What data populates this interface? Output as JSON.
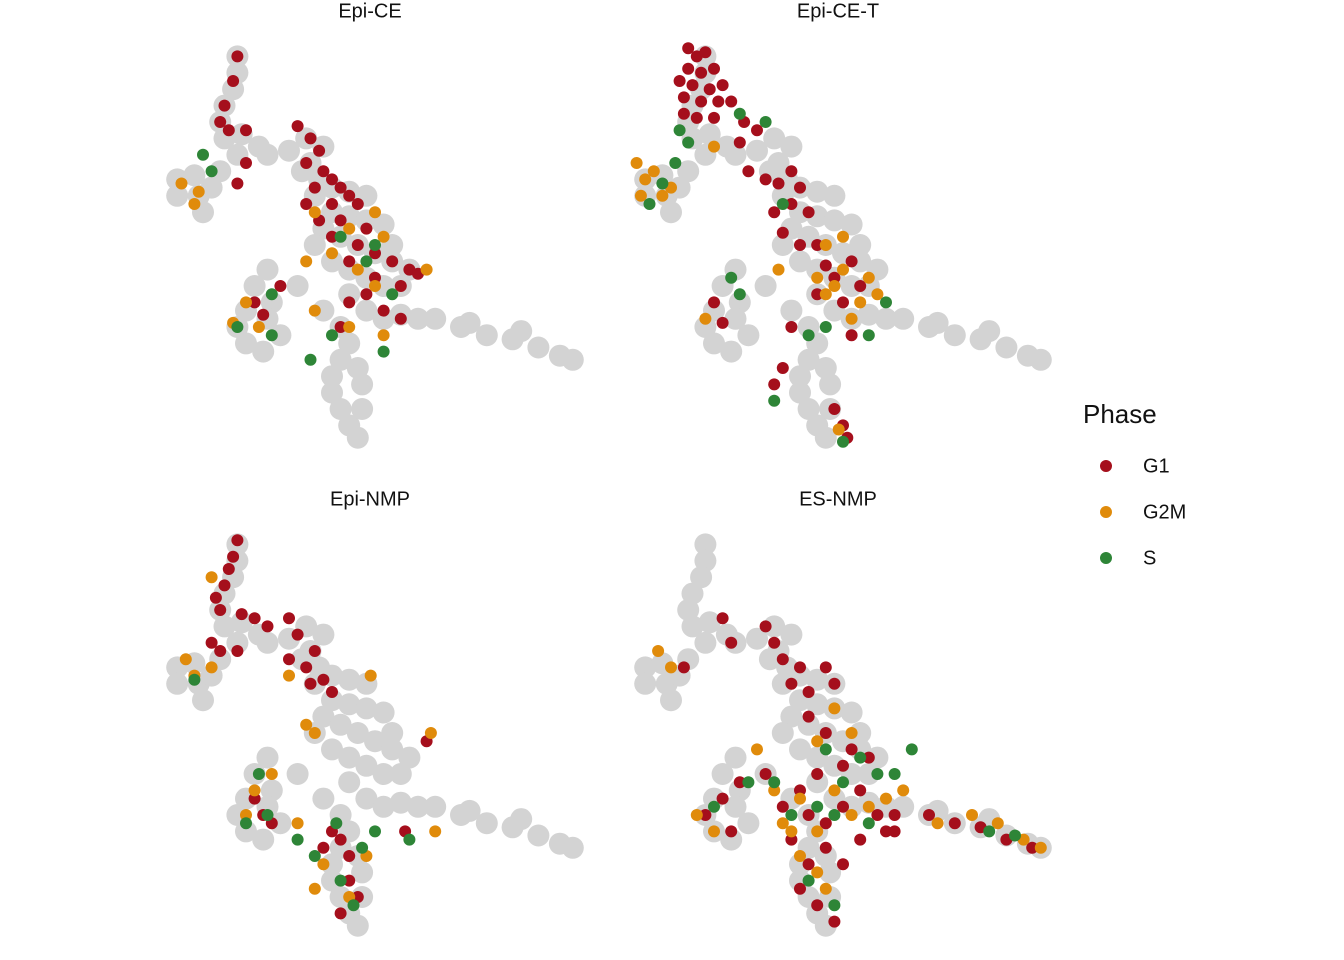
{
  "all_cells": {
    "color": "#d3d3d3",
    "x": [
      18,
      18,
      17,
      15,
      14,
      15,
      19,
      23,
      18,
      4,
      8,
      4,
      9,
      12,
      14,
      10,
      25,
      30,
      34,
      38,
      35,
      33,
      37,
      40,
      44,
      48,
      36,
      40,
      44,
      48,
      52,
      38,
      42,
      46,
      50,
      54,
      36,
      40,
      44,
      48,
      52,
      56,
      58,
      54,
      44,
      48,
      52,
      56,
      60,
      64,
      70,
      76,
      82,
      88,
      93,
      96,
      84,
      72,
      38,
      42,
      44,
      42,
      40,
      40,
      42,
      44,
      46,
      47,
      47,
      46,
      26,
      20,
      18,
      20,
      24,
      28,
      25,
      32,
      22,
      25
    ],
    "values": [
      96,
      92,
      88,
      84,
      80,
      76,
      77,
      74,
      72,
      66,
      67,
      62,
      62,
      64,
      68,
      58,
      72,
      73,
      76,
      74,
      70,
      68,
      66,
      64,
      63,
      62,
      62,
      58,
      57,
      56,
      55,
      54,
      52,
      50,
      48,
      46,
      50,
      46,
      44,
      42,
      40,
      40,
      44,
      50,
      38,
      34,
      32,
      33,
      32,
      32,
      30,
      28,
      27,
      25,
      23,
      22,
      29,
      31,
      34,
      30,
      26,
      22,
      18,
      14,
      10,
      6,
      3,
      10,
      16,
      20,
      36,
      34,
      30,
      26,
      24,
      28,
      32,
      40,
      40,
      44
    ]
  },
  "legend": {
    "title": "Phase",
    "position": "right"
  },
  "chart_data": [
    {
      "type": "scatter",
      "title": "Epi-CE",
      "xlim": [
        0,
        100
      ],
      "ylim": [
        0,
        100
      ],
      "series": [
        {
          "name": "G1",
          "color": "#a50f1c",
          "x": [
            18,
            17,
            15,
            16,
            20,
            14,
            32,
            35,
            37,
            34,
            38,
            40,
            42,
            36,
            44,
            46,
            40,
            37,
            42,
            48,
            46,
            50,
            54,
            44,
            50,
            56,
            58,
            60,
            48,
            44,
            52,
            56,
            42,
            24,
            22,
            28,
            18,
            20,
            40,
            34
          ],
          "values": [
            96,
            90,
            84,
            78,
            78,
            80,
            79,
            76,
            73,
            70,
            68,
            66,
            64,
            64,
            62,
            60,
            60,
            56,
            56,
            54,
            50,
            48,
            46,
            46,
            42,
            40,
            44,
            43,
            38,
            36,
            34,
            32,
            30,
            33,
            36,
            40,
            65,
            70,
            52,
            60
          ]
        },
        {
          "name": "G2M",
          "color": "#e08b0b",
          "x": [
            5,
            9,
            8,
            36,
            44,
            50,
            52,
            40,
            46,
            20,
            17,
            23,
            36,
            44,
            50,
            52,
            62,
            34
          ],
          "values": [
            65,
            63,
            60,
            58,
            54,
            58,
            52,
            48,
            44,
            36,
            31,
            30,
            34,
            30,
            40,
            28,
            44,
            46
          ]
        },
        {
          "name": "S",
          "color": "#2e8537",
          "x": [
            10,
            12,
            42,
            50,
            48,
            54,
            18,
            26,
            35,
            52,
            40,
            26
          ],
          "values": [
            72,
            68,
            52,
            50,
            46,
            38,
            30,
            38,
            22,
            24,
            28,
            28
          ]
        }
      ]
    },
    {
      "type": "scatter",
      "title": "Epi-CE-T",
      "xlim": [
        0,
        100
      ],
      "ylim": [
        0,
        100
      ],
      "series": [
        {
          "name": "G1",
          "color": "#a50f1c",
          "x": [
            14,
            16,
            18,
            14,
            17,
            20,
            12,
            15,
            19,
            22,
            13,
            17,
            21,
            24,
            13,
            16,
            20,
            27,
            30,
            26,
            28,
            32,
            35,
            38,
            40,
            34,
            38,
            42,
            36,
            40,
            44,
            46,
            48,
            52,
            54,
            50,
            44,
            22,
            20,
            34,
            36,
            48,
            50,
            51,
            38,
            52
          ],
          "values": [
            98,
            96,
            97,
            93,
            92,
            93,
            90,
            89,
            88,
            89,
            86,
            85,
            85,
            85,
            82,
            81,
            81,
            80,
            78,
            75,
            68,
            66,
            65,
            68,
            64,
            58,
            60,
            58,
            53,
            50,
            50,
            45,
            42,
            46,
            40,
            36,
            38,
            31,
            36,
            16,
            20,
            10,
            6,
            3,
            30,
            28
          ]
        },
        {
          "name": "G2M",
          "color": "#e08b0b",
          "x": [
            2,
            4,
            6,
            3,
            8,
            10,
            48,
            50,
            44,
            46,
            54,
            56,
            58,
            52,
            49,
            20,
            18,
            50,
            46,
            35
          ],
          "values": [
            70,
            66,
            68,
            62,
            62,
            64,
            40,
            44,
            42,
            38,
            36,
            42,
            38,
            32,
            5,
            74,
            32,
            52,
            50,
            44
          ]
        },
        {
          "name": "S",
          "color": "#2e8537",
          "x": [
            5,
            8,
            11,
            12,
            14,
            32,
            26,
            36,
            24,
            26,
            46,
            60,
            34,
            50,
            42,
            56
          ],
          "values": [
            60,
            65,
            70,
            78,
            75,
            80,
            82,
            60,
            42,
            38,
            30,
            36,
            12,
            2,
            28,
            28
          ]
        }
      ]
    },
    {
      "type": "scatter",
      "title": "Epi-NMP",
      "xlim": [
        0,
        100
      ],
      "ylim": [
        0,
        100
      ],
      "series": [
        {
          "name": "G1",
          "color": "#a50f1c",
          "x": [
            18,
            17,
            16,
            15,
            13,
            14,
            19,
            22,
            25,
            30,
            32,
            30,
            34,
            36,
            38,
            40,
            35,
            14,
            12,
            18,
            24,
            22,
            26,
            42,
            44,
            44,
            46,
            38,
            40,
            62,
            57,
            42
          ],
          "values": [
            97,
            93,
            90,
            86,
            83,
            80,
            79,
            78,
            76,
            78,
            74,
            68,
            66,
            70,
            63,
            60,
            62,
            70,
            72,
            70,
            30,
            34,
            28,
            24,
            20,
            14,
            10,
            22,
            26,
            48,
            26,
            6
          ]
        },
        {
          "name": "G2M",
          "color": "#e08b0b",
          "x": [
            6,
            8,
            12,
            30,
            49,
            34,
            36,
            22,
            20,
            32,
            38,
            36,
            44,
            48,
            63,
            64,
            26,
            12
          ],
          "values": [
            68,
            64,
            66,
            64,
            64,
            52,
            50,
            36,
            30,
            28,
            18,
            12,
            10,
            20,
            50,
            26,
            40,
            88
          ]
        },
        {
          "name": "S",
          "color": "#2e8537",
          "x": [
            8,
            23,
            25,
            20,
            32,
            36,
            42,
            45,
            47,
            50,
            58,
            41
          ],
          "values": [
            63,
            40,
            30,
            28,
            24,
            20,
            14,
            8,
            22,
            26,
            24,
            28
          ]
        }
      ]
    },
    {
      "type": "scatter",
      "title": "ES-NMP",
      "xlim": [
        0,
        100
      ],
      "ylim": [
        0,
        100
      ],
      "series": [
        {
          "name": "G1",
          "color": "#a50f1c",
          "x": [
            13,
            22,
            24,
            32,
            34,
            36,
            40,
            38,
            42,
            46,
            48,
            42,
            46,
            52,
            50,
            56,
            44,
            40,
            36,
            42,
            46,
            50,
            54,
            58,
            60,
            62,
            46,
            42,
            40,
            44,
            48,
            38,
            18,
            22,
            24,
            70,
            76,
            82,
            88,
            94,
            32,
            26,
            50,
            54,
            62
          ],
          "values": [
            66,
            78,
            72,
            76,
            72,
            68,
            66,
            62,
            60,
            66,
            62,
            54,
            50,
            46,
            42,
            44,
            40,
            36,
            32,
            30,
            28,
            32,
            36,
            30,
            26,
            30,
            22,
            18,
            12,
            8,
            4,
            24,
            30,
            34,
            26,
            30,
            28,
            27,
            24,
            22,
            40,
            38,
            18,
            24,
            26
          ]
        },
        {
          "name": "G2M",
          "color": "#e08b0b",
          "x": [
            7,
            10,
            48,
            44,
            48,
            40,
            36,
            44,
            52,
            56,
            60,
            64,
            40,
            44,
            46,
            34,
            20,
            16,
            30,
            72,
            80,
            86,
            92,
            96,
            52,
            38
          ],
          "values": [
            70,
            66,
            56,
            48,
            36,
            34,
            28,
            26,
            30,
            32,
            34,
            36,
            20,
            16,
            12,
            36,
            26,
            30,
            46,
            28,
            30,
            28,
            24,
            22,
            50,
            26
          ]
        },
        {
          "name": "S",
          "color": "#2e8537",
          "x": [
            50,
            54,
            58,
            62,
            44,
            48,
            56,
            38,
            42,
            48,
            20,
            28,
            34,
            66,
            84,
            90,
            46
          ],
          "values": [
            38,
            44,
            40,
            40,
            32,
            30,
            28,
            30,
            14,
            8,
            32,
            38,
            38,
            46,
            26,
            25,
            46
          ]
        }
      ]
    }
  ]
}
